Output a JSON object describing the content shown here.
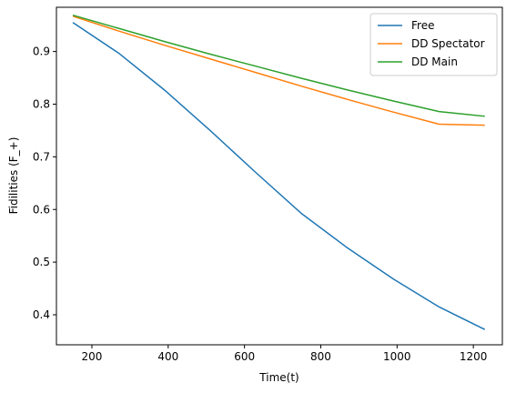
{
  "chart_data": {
    "type": "line",
    "xlabel": "Time(t)",
    "ylabel": "Fidilities (F_+)",
    "xlim": [
      107,
      1276
    ],
    "ylim": [
      0.343,
      0.984
    ],
    "xticks": [
      200,
      400,
      600,
      800,
      1000,
      1200
    ],
    "yticks": [
      0.4,
      0.5,
      0.6,
      0.7,
      0.8,
      0.9
    ],
    "grid": false,
    "legend_position": "top-right",
    "x": [
      150,
      270,
      390,
      510,
      630,
      750,
      870,
      990,
      1110,
      1230
    ],
    "series": [
      {
        "name": "Free",
        "color": "#1f77b4",
        "values": [
          0.955,
          0.897,
          0.827,
          0.75,
          0.67,
          0.592,
          0.527,
          0.468,
          0.415,
          0.372
        ]
      },
      {
        "name": "DD Spectator",
        "color": "#ff7f0e",
        "values": [
          0.967,
          0.939,
          0.912,
          0.886,
          0.86,
          0.834,
          0.809,
          0.785,
          0.762,
          0.76
        ]
      },
      {
        "name": "DD Main",
        "color": "#2ca02c",
        "values": [
          0.969,
          0.944,
          0.919,
          0.895,
          0.872,
          0.849,
          0.827,
          0.806,
          0.786,
          0.777
        ]
      }
    ]
  }
}
